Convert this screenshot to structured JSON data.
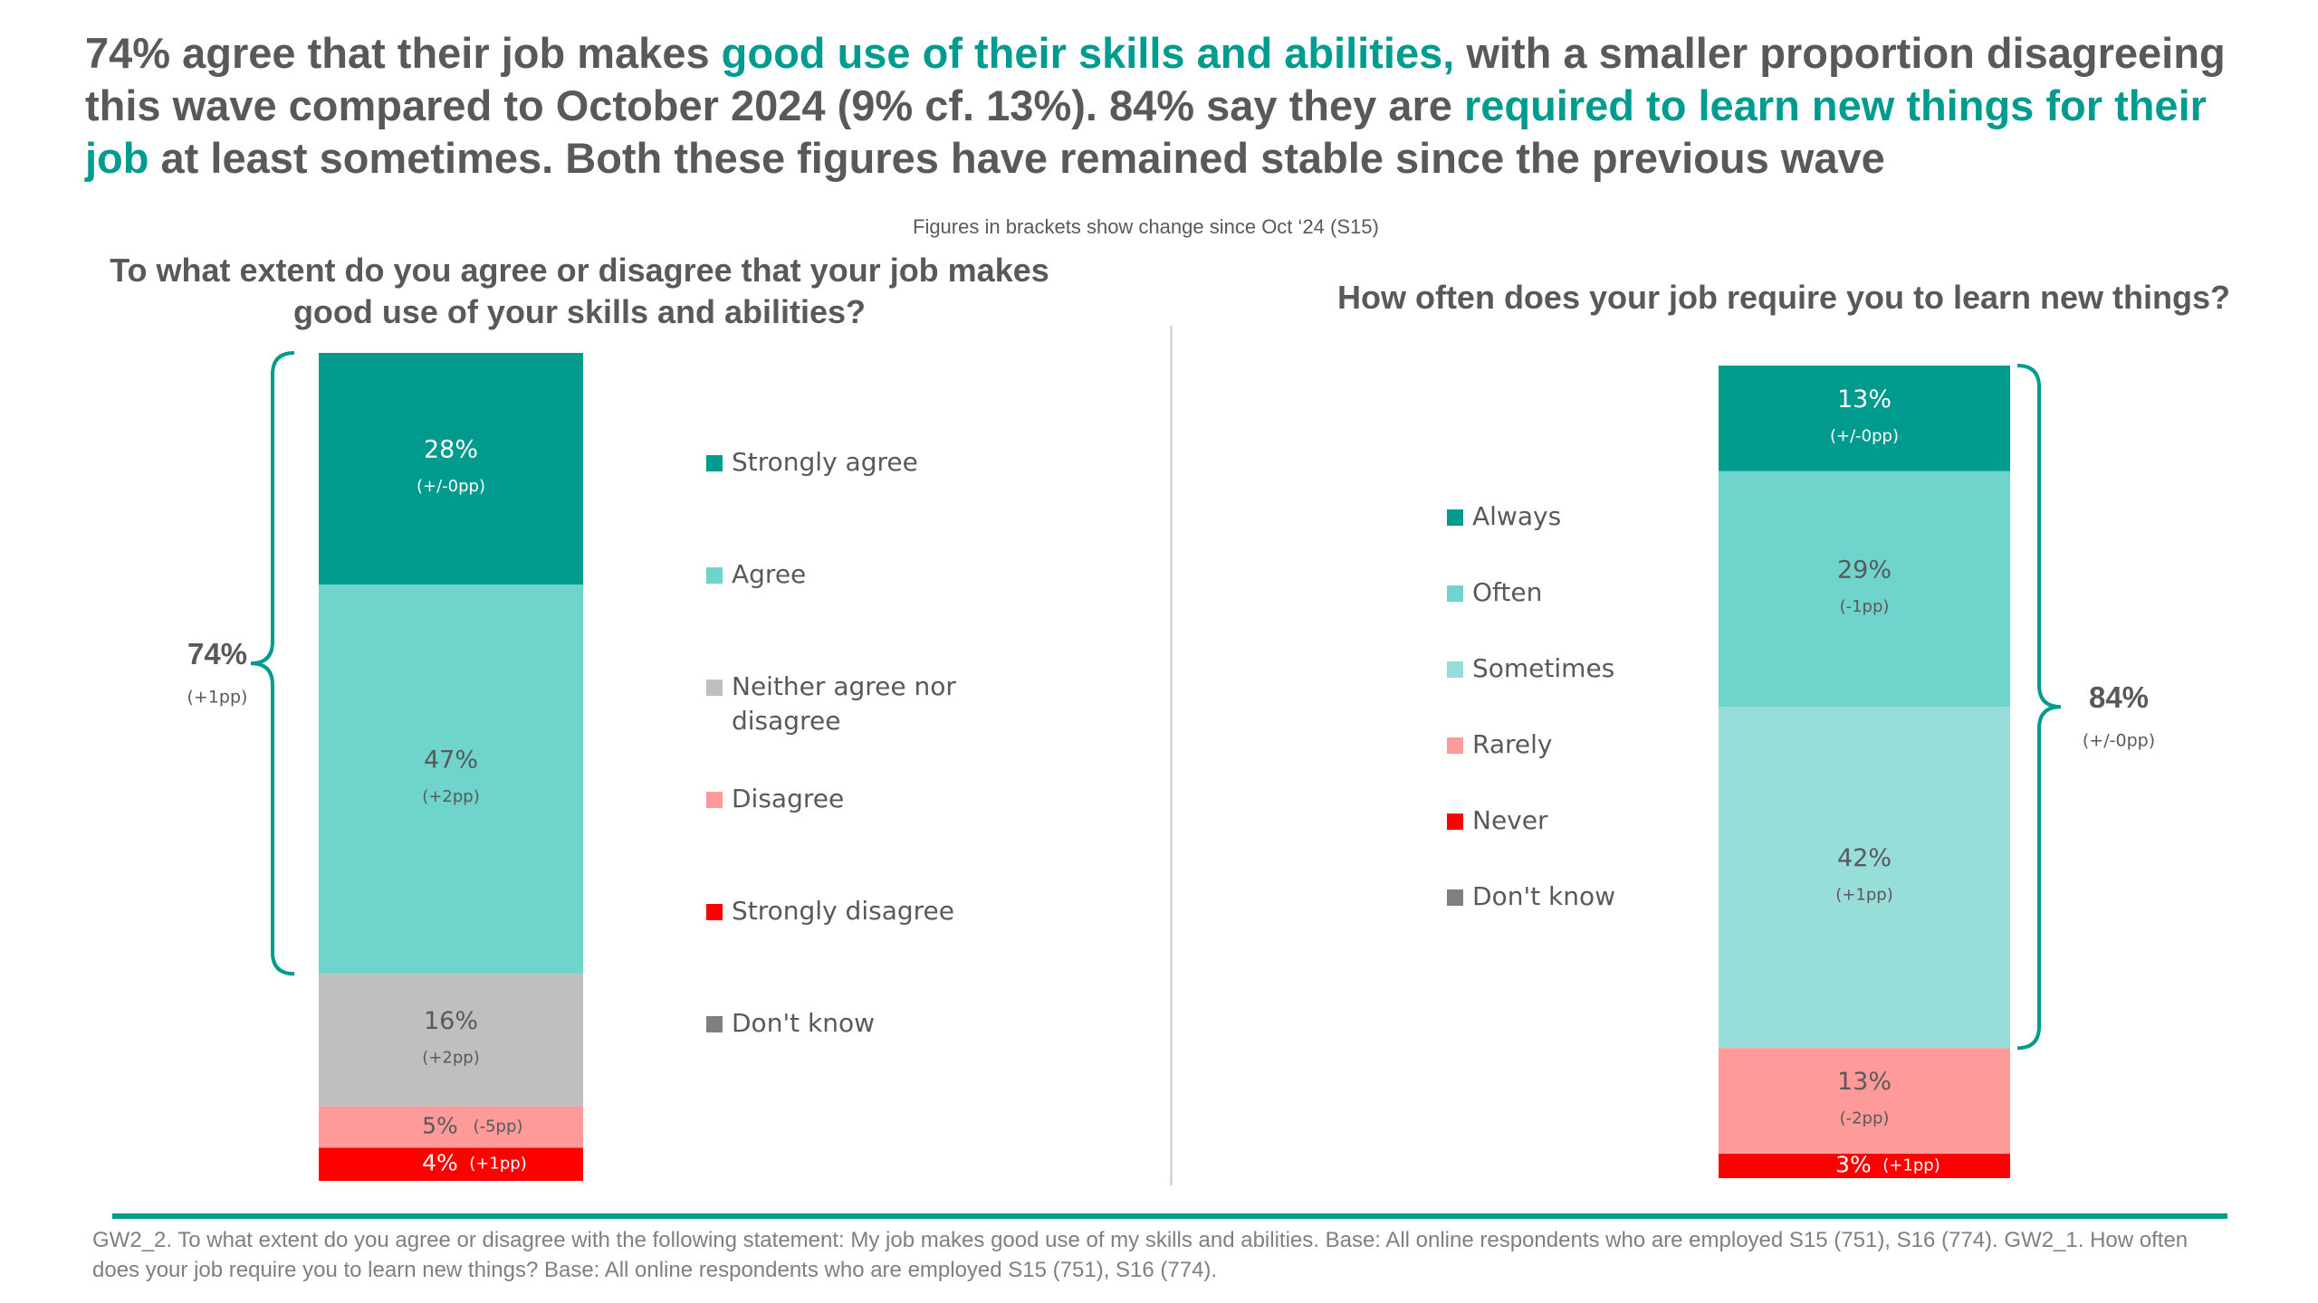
{
  "headline": {
    "parts": [
      {
        "text": "74% agree that their job makes ",
        "highlight": false
      },
      {
        "text": "good use of their skills and abilities,",
        "highlight": true
      },
      {
        "text": " with a smaller proportion disagreeing this wave compared to October 2024 (9% cf. 13%). 84% say they are ",
        "highlight": false
      },
      {
        "text": "required to learn new things for their job",
        "highlight": true
      },
      {
        "text": " at least sometimes. Both these figures have remained stable since the previous wave",
        "highlight": false
      }
    ]
  },
  "bracket_note": "Figures in brackets show change since Oct ‘24 (S15)",
  "colors": {
    "accent": "#009B8F",
    "text": "#595959"
  },
  "chart_data": [
    {
      "type": "bar",
      "stacked": true,
      "title": "To what extent do you agree or disagree that your job makes good use of your skills and abilities?",
      "unit": "%",
      "segments": [
        {
          "name": "Strongly agree",
          "value": 28,
          "change": "(+/-0pp)",
          "color": "#009B8F",
          "label": "28%"
        },
        {
          "name": "Agree",
          "value": 47,
          "change": "(+2pp)",
          "color": "#6ED4CC",
          "label": "47%"
        },
        {
          "name": "Neither agree nor disagree",
          "value": 16,
          "change": "(+2pp)",
          "color": "#BFBFBF",
          "label": "16%"
        },
        {
          "name": "Disagree",
          "value": 5,
          "change": "(-5pp)",
          "color": "#FF9A9A",
          "label": "5%"
        },
        {
          "name": "Strongly disagree",
          "value": 4,
          "change": "(+1pp)",
          "color": "#FF0000",
          "label": "4%"
        },
        {
          "name": "Don't know",
          "value": 0,
          "change": "",
          "color": "#7F7F7F",
          "label": ""
        }
      ],
      "legend": [
        "Strongly agree",
        "Agree",
        "Neither agree nor disagree",
        "Disagree",
        "Strongly disagree",
        "Don't know"
      ],
      "bracket": {
        "label": "74%",
        "change": "(+1pp)",
        "side": "left",
        "from": 0,
        "to": 75
      }
    },
    {
      "type": "bar",
      "stacked": true,
      "title": "How often does your job require you to learn new things?",
      "unit": "%",
      "segments": [
        {
          "name": "Always",
          "value": 13,
          "change": "(+/-0pp)",
          "color": "#009B8F",
          "label": "13%"
        },
        {
          "name": "Often",
          "value": 29,
          "change": "(-1pp)",
          "color": "#6ED4CC",
          "label": "29%"
        },
        {
          "name": "Sometimes",
          "value": 42,
          "change": "(+1pp)",
          "color": "#97DED8",
          "label": "42%"
        },
        {
          "name": "Rarely",
          "value": 13,
          "change": "(-2pp)",
          "color": "#FF9A9A",
          "label": "13%"
        },
        {
          "name": "Never",
          "value": 3,
          "change": "(+1pp)",
          "color": "#FF0000",
          "label": "3%"
        },
        {
          "name": "Don't know",
          "value": 0,
          "change": "",
          "color": "#7F7F7F",
          "label": ""
        }
      ],
      "legend": [
        "Always",
        "Often",
        "Sometimes",
        "Rarely",
        "Never",
        "Don't know"
      ],
      "bracket": {
        "label": "84%",
        "change": "(+/-0pp)",
        "side": "right",
        "from": 0,
        "to": 84
      }
    }
  ],
  "footnote": "GW2_2. To what extent do you agree or disagree with the following statement: My job makes good use of my skills and abilities. Base: All online respondents who are employed S15 (751), S16 (774). GW2_1. How often does your job require you to learn new things? Base: All online respondents who are employed S15 (751), S16 (774)."
}
